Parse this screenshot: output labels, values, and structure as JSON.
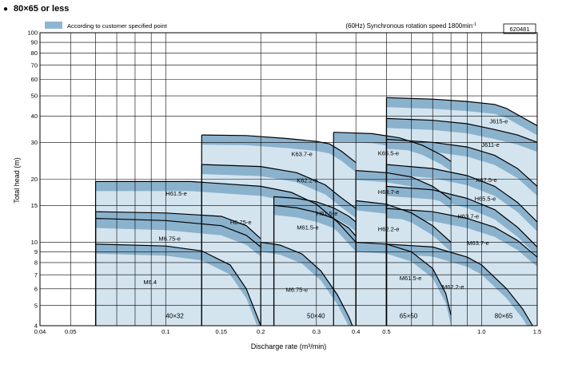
{
  "header": {
    "bullet": "●",
    "title": "80×65 or less",
    "legend_label": "According to customer specified point",
    "speed_prefix": "(60Hz) Synchronous rotation speed 1800min",
    "speed_sup": "-1",
    "code": "620481"
  },
  "colors": {
    "region_light": "#d3e4ef",
    "band_dark": "#8bb2cd",
    "legend_swatch": "#8fb6d1",
    "line": "#000000",
    "grid": "#000000"
  },
  "chart_data": {
    "type": "area",
    "xlabel": "Discharge rate (m³/min)",
    "ylabel": "Total head (m)",
    "xscale": "log",
    "yscale": "log",
    "xlim": [
      0.04,
      1.5
    ],
    "ylim": [
      4,
      100
    ],
    "x_ticks": [
      0.04,
      0.05,
      0.1,
      0.15,
      0.2,
      0.3,
      0.4,
      0.5,
      1.0,
      1.5
    ],
    "x_tick_labels": [
      "0.04",
      "0.05",
      "0.1",
      "0.15",
      "0.2",
      "0.3",
      "0.4",
      "0.5",
      "1.0",
      "1.5"
    ],
    "y_ticks": [
      4,
      5,
      6,
      7,
      8,
      9,
      10,
      15,
      20,
      30,
      40,
      50,
      60,
      70,
      80,
      90,
      100
    ],
    "grid": true,
    "pump_sizes": [
      {
        "label": "40×32",
        "x_range": [
          0.06,
          0.2
        ],
        "label_at": [
          0.1,
          4.35
        ]
      },
      {
        "label": "50×40",
        "x_range": [
          0.2,
          0.4
        ],
        "label_at": [
          0.28,
          4.35
        ]
      },
      {
        "label": "65×50",
        "x_range": [
          0.4,
          0.8
        ],
        "label_at": [
          0.55,
          4.35
        ]
      },
      {
        "label": "80×65",
        "x_range": [
          0.5,
          1.5
        ],
        "label_at": [
          1.1,
          4.35
        ]
      }
    ],
    "curves": [
      {
        "label": "M6.4",
        "points": [
          [
            0.06,
            9.8
          ],
          [
            0.1,
            9.6
          ],
          [
            0.13,
            9.1
          ],
          [
            0.16,
            7.8
          ],
          [
            0.18,
            6.0
          ],
          [
            0.2,
            4.0
          ]
        ],
        "label_at": [
          0.085,
          6.3
        ]
      },
      {
        "label": "M6.75-e",
        "points": [
          [
            0.06,
            13.0
          ],
          [
            0.1,
            12.7
          ],
          [
            0.15,
            12.0
          ],
          [
            0.18,
            10.8
          ],
          [
            0.2,
            9.5
          ]
        ],
        "label_at": [
          0.095,
          10.2
        ]
      },
      {
        "label": "H6.75-e",
        "points": [
          [
            0.06,
            14.0
          ],
          [
            0.1,
            13.8
          ],
          [
            0.15,
            13.3
          ],
          [
            0.18,
            12.0
          ],
          [
            0.2,
            10.4
          ]
        ],
        "label_at": [
          0.16,
          12.2
        ]
      },
      {
        "label": "H61.5-e",
        "points": [
          [
            0.06,
            19.5
          ],
          [
            0.12,
            19.5
          ],
          [
            0.2,
            18.5
          ],
          [
            0.25,
            17.3
          ],
          [
            0.3,
            15.2
          ],
          [
            0.35,
            12.5
          ],
          [
            0.4,
            10.0
          ]
        ],
        "label_at": [
          0.1,
          16.7
        ]
      },
      {
        "label": "M6.75-e",
        "points": [
          [
            0.2,
            10.0
          ],
          [
            0.23,
            9.7
          ],
          [
            0.27,
            8.8
          ],
          [
            0.31,
            7.3
          ],
          [
            0.35,
            5.6
          ],
          [
            0.38,
            4.4
          ],
          [
            0.39,
            4.0
          ]
        ],
        "label_at": [
          0.24,
          5.8
        ]
      },
      {
        "label": "M61.5-e",
        "points": [
          [
            0.22,
            15.0
          ],
          [
            0.26,
            14.6
          ],
          [
            0.3,
            13.9
          ],
          [
            0.34,
            13.0
          ],
          [
            0.38,
            11.7
          ],
          [
            0.4,
            10.7
          ]
        ],
        "label_at": [
          0.26,
          11.5
        ]
      },
      {
        "label": "H61.5-e",
        "points": [
          [
            0.22,
            16.5
          ],
          [
            0.26,
            16.2
          ],
          [
            0.3,
            15.6
          ],
          [
            0.34,
            14.6
          ],
          [
            0.38,
            13.3
          ],
          [
            0.4,
            12.5
          ]
        ],
        "label_at": [
          0.3,
          13.4
        ]
      },
      {
        "label": "K62.2-e",
        "points": [
          [
            0.13,
            23.5
          ],
          [
            0.2,
            23.0
          ],
          [
            0.26,
            21.5
          ],
          [
            0.32,
            18.8
          ],
          [
            0.36,
            16.3
          ],
          [
            0.4,
            14.5
          ]
        ],
        "label_at": [
          0.26,
          19.3
        ]
      },
      {
        "label": "K63.7-e",
        "points": [
          [
            0.13,
            32.5
          ],
          [
            0.18,
            32.3
          ],
          [
            0.24,
            31.3
          ],
          [
            0.3,
            30.3
          ],
          [
            0.33,
            29.5
          ],
          [
            0.36,
            27.2
          ],
          [
            0.4,
            24.0
          ]
        ],
        "label_at": [
          0.25,
          25.8
        ]
      },
      {
        "label": "M61.5-e",
        "points": [
          [
            0.4,
            10.0
          ],
          [
            0.5,
            9.8
          ],
          [
            0.6,
            9.0
          ],
          [
            0.7,
            7.5
          ],
          [
            0.77,
            5.7
          ],
          [
            0.8,
            4.5
          ]
        ],
        "label_at": [
          0.55,
          6.6
        ]
      },
      {
        "label": "H62.2-e",
        "points": [
          [
            0.4,
            15.8
          ],
          [
            0.5,
            15.2
          ],
          [
            0.6,
            13.8
          ],
          [
            0.7,
            12.0
          ],
          [
            0.8,
            10.0
          ]
        ],
        "label_at": [
          0.47,
          11.3
        ]
      },
      {
        "label": "H63.7-e",
        "points": [
          [
            0.4,
            22.0
          ],
          [
            0.5,
            21.5
          ],
          [
            0.6,
            20.5
          ],
          [
            0.7,
            18.5
          ],
          [
            0.8,
            16.0
          ]
        ],
        "label_at": [
          0.47,
          17.0
        ]
      },
      {
        "label": "K65.5-e",
        "points": [
          [
            0.34,
            33.5
          ],
          [
            0.45,
            33.0
          ],
          [
            0.55,
            31.5
          ],
          [
            0.65,
            29.0
          ],
          [
            0.75,
            26.0
          ],
          [
            0.8,
            24.3
          ]
        ],
        "label_at": [
          0.47,
          26.0
        ]
      },
      {
        "label": "M62.2-e",
        "points": [
          [
            0.5,
            9.8
          ],
          [
            0.7,
            9.5
          ],
          [
            0.9,
            8.5
          ],
          [
            1.0,
            7.8
          ],
          [
            1.2,
            6.0
          ],
          [
            1.35,
            4.8
          ],
          [
            1.45,
            4.0
          ]
        ],
        "label_at": [
          0.75,
          6.0
        ]
      },
      {
        "label": "M63.7-e",
        "points": [
          [
            0.5,
            14.5
          ],
          [
            0.7,
            14.0
          ],
          [
            0.9,
            13.0
          ],
          [
            1.1,
            11.8
          ],
          [
            1.3,
            10.2
          ],
          [
            1.5,
            8.5
          ]
        ],
        "label_at": [
          0.9,
          9.7
        ]
      },
      {
        "label": "H63.7-e",
        "points": [
          [
            0.5,
            18.5
          ],
          [
            0.7,
            17.8
          ],
          [
            0.9,
            16.2
          ],
          [
            1.1,
            14.3
          ],
          [
            1.3,
            11.8
          ],
          [
            1.5,
            9.5
          ]
        ],
        "label_at": [
          0.84,
          13.0
        ]
      },
      {
        "label": "H65.5-e",
        "points": [
          [
            0.5,
            23.5
          ],
          [
            0.7,
            22.5
          ],
          [
            0.9,
            20.8
          ],
          [
            1.1,
            18.5
          ],
          [
            1.3,
            15.5
          ],
          [
            1.5,
            12.5
          ]
        ],
        "label_at": [
          0.95,
          15.8
        ]
      },
      {
        "label": "K67.5-e",
        "points": [
          [
            0.5,
            31.0
          ],
          [
            0.7,
            30.0
          ],
          [
            0.9,
            28.5
          ],
          [
            1.1,
            26.0
          ],
          [
            1.3,
            22.5
          ],
          [
            1.5,
            18.5
          ]
        ],
        "label_at": [
          0.96,
          19.4
        ]
      },
      {
        "label": "J611-e",
        "points": [
          [
            0.5,
            39.0
          ],
          [
            0.7,
            38.2
          ],
          [
            0.9,
            36.8
          ],
          [
            1.1,
            34.5
          ],
          [
            1.3,
            32.5
          ],
          [
            1.5,
            30.0
          ]
        ],
        "label_at": [
          1.0,
          28.5
        ]
      },
      {
        "label": "J615-e",
        "points": [
          [
            0.5,
            49.0
          ],
          [
            0.7,
            48.2
          ],
          [
            0.9,
            47.0
          ],
          [
            1.1,
            45.5
          ],
          [
            1.2,
            43.5
          ],
          [
            1.5,
            36.0
          ]
        ],
        "label_at": [
          1.06,
          37.0
        ]
      }
    ]
  }
}
